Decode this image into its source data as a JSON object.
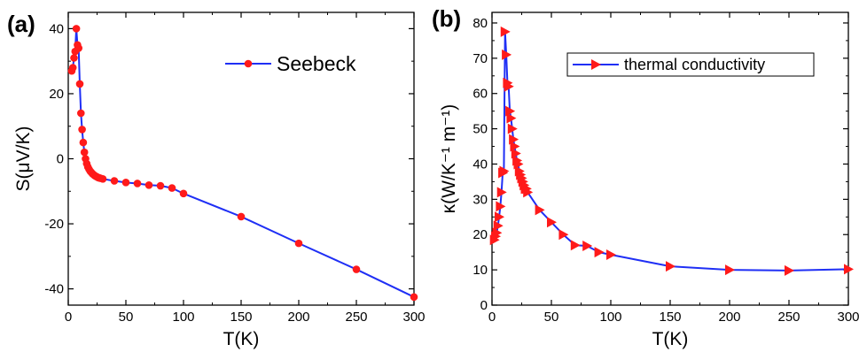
{
  "chart_data": [
    {
      "panel_label": "(a)",
      "type": "line",
      "xlabel": "T(K)",
      "ylabel": "S(μV/K)",
      "xlim": [
        0,
        300
      ],
      "ylim": [
        -45,
        45
      ],
      "xticks": [
        0,
        50,
        100,
        150,
        200,
        250,
        300
      ],
      "yticks": [
        -40,
        -20,
        0,
        20,
        40
      ],
      "grid": false,
      "legend_position": "top-right",
      "series": [
        {
          "name": "Seebeck",
          "color": "#1f2ff5",
          "marker": "circle",
          "marker_color": "#ff1a1a",
          "x": [
            3,
            4,
            5,
            6,
            7,
            8,
            9,
            10,
            11,
            12,
            13,
            14,
            15,
            16,
            17,
            18,
            19,
            20,
            21,
            22,
            23,
            24,
            25,
            26,
            27,
            28,
            30,
            40,
            50,
            60,
            70,
            80,
            90,
            100,
            150,
            200,
            250,
            300
          ],
          "y": [
            27,
            28,
            31,
            33,
            40,
            35,
            34,
            23,
            14,
            9,
            5,
            2,
            0,
            -1.5,
            -2.5,
            -3.2,
            -3.8,
            -4.2,
            -4.6,
            -4.9,
            -5.2,
            -5.4,
            -5.6,
            -5.8,
            -5.9,
            -6,
            -6.2,
            -6.8,
            -7.3,
            -7.6,
            -8.1,
            -8.3,
            -9,
            -10.7,
            -17.8,
            -26,
            -34,
            -42.5
          ]
        }
      ]
    },
    {
      "panel_label": "(b)",
      "type": "line",
      "xlabel": "T(K)",
      "ylabel": "κ(W/K⁻¹ m⁻¹)",
      "xlim": [
        0,
        300
      ],
      "ylim": [
        0,
        83
      ],
      "xticks": [
        0,
        50,
        100,
        150,
        200,
        250,
        300
      ],
      "yticks": [
        0,
        10,
        20,
        30,
        40,
        50,
        60,
        70,
        80
      ],
      "grid": false,
      "legend_position": "top-right",
      "series": [
        {
          "name": "thermal conductivity",
          "color": "#1f2ff5",
          "marker": "triangle-right",
          "marker_color": "#ff1a1a",
          "x": [
            2,
            3,
            4,
            5,
            6,
            7,
            8,
            9,
            10,
            11,
            12,
            13,
            14,
            15,
            16,
            17,
            18,
            19,
            20,
            21,
            22,
            23,
            24,
            25,
            26,
            27,
            28,
            29,
            30,
            40,
            50,
            60,
            70,
            80,
            90,
            100,
            150,
            200,
            250,
            300
          ],
          "y": [
            18.5,
            19.5,
            20.5,
            22.5,
            25,
            28,
            32,
            37.5,
            38,
            77.5,
            71,
            63,
            62,
            55,
            53,
            50,
            47,
            45,
            43,
            41,
            40,
            38,
            37,
            36,
            35,
            34,
            33,
            33,
            32,
            27,
            23.5,
            20,
            17,
            16.8,
            15,
            14.3,
            11,
            10,
            9.8,
            10.2
          ]
        }
      ]
    }
  ]
}
